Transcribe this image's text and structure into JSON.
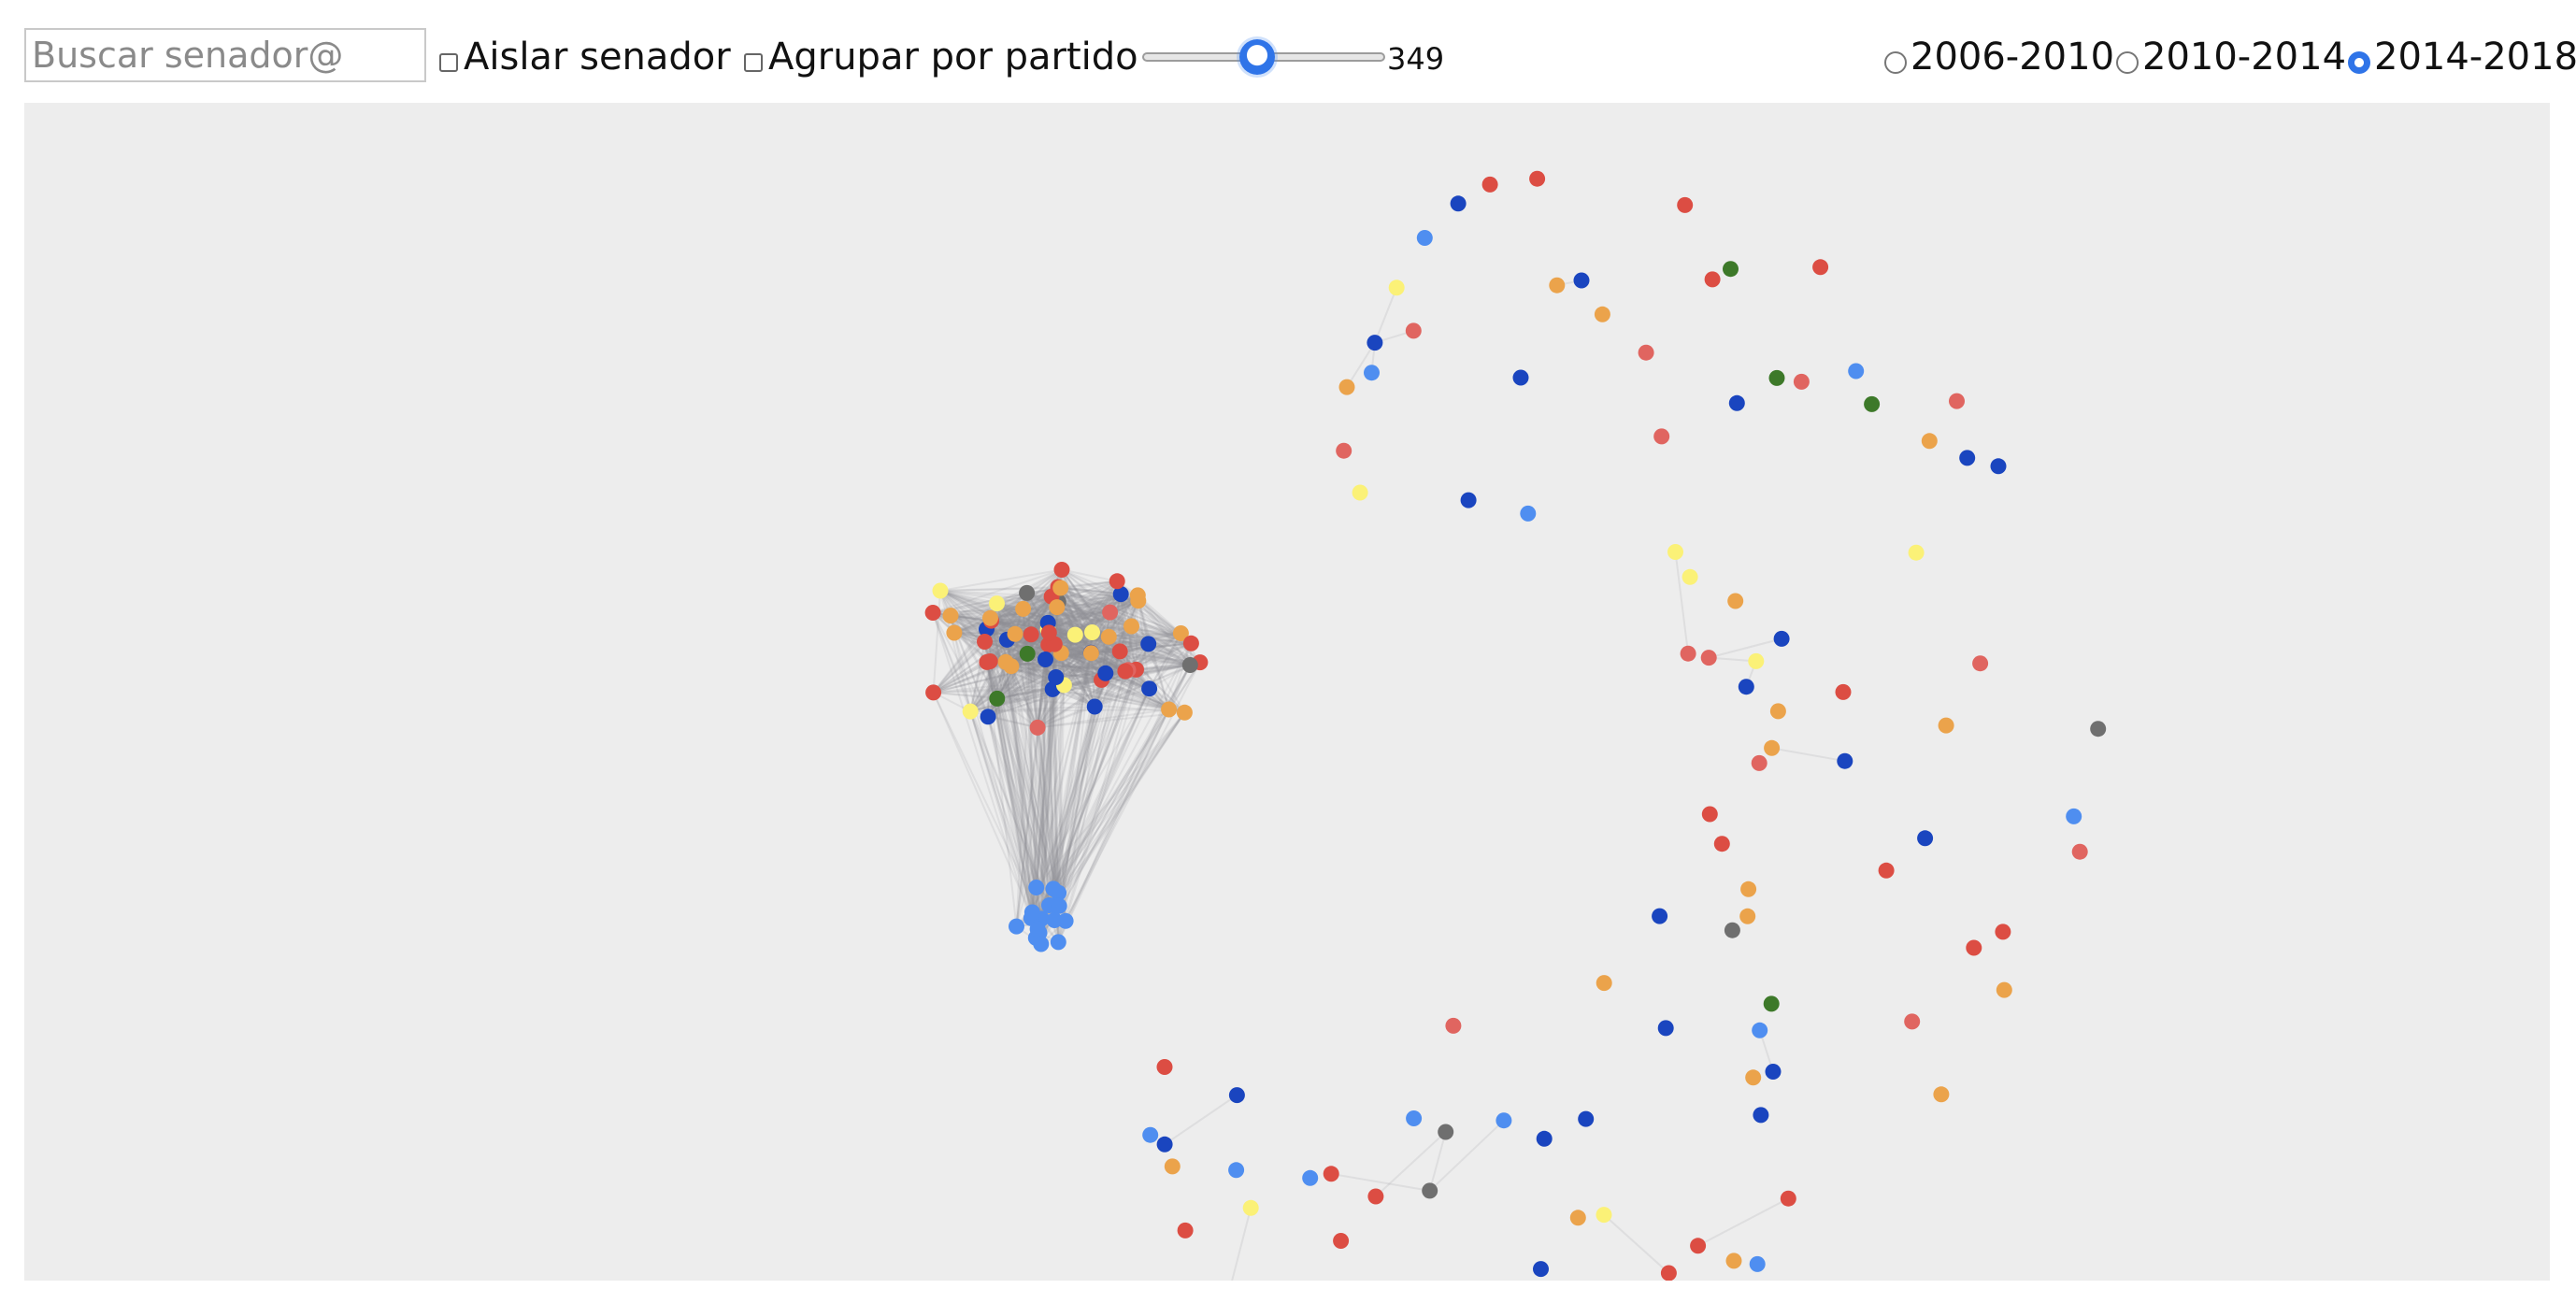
{
  "search": {
    "placeholder": "Buscar senador@"
  },
  "options": {
    "isolate_label": "Aislar senador",
    "isolate_checked": false,
    "group_label": "Agrupar por partido",
    "group_checked": false
  },
  "slider": {
    "value": "349"
  },
  "periods": [
    {
      "label": "2006-2010",
      "checked": false
    },
    {
      "label": "2010-2014",
      "checked": false
    },
    {
      "label": "2014-2018",
      "checked": true
    }
  ],
  "colors": {
    "blue": "#1a45bf",
    "light_blue": "#4f8ef0",
    "red": "#dc4d43",
    "pink": "#e06560",
    "orange": "#eba34b",
    "yellow": "#fbf177",
    "green": "#3d7929",
    "gray": "#6f6f6f",
    "edge": "#8d8d98",
    "background": "#ededed",
    "accent": "#2f74e8"
  },
  "graph": {
    "party_color_counts": {
      "blue": 34,
      "light_blue": 30,
      "red": 40,
      "pink": 16,
      "orange": 36,
      "yellow": 15,
      "green": 6,
      "gray": 7
    },
    "clustered_fraction": 0.45
  }
}
